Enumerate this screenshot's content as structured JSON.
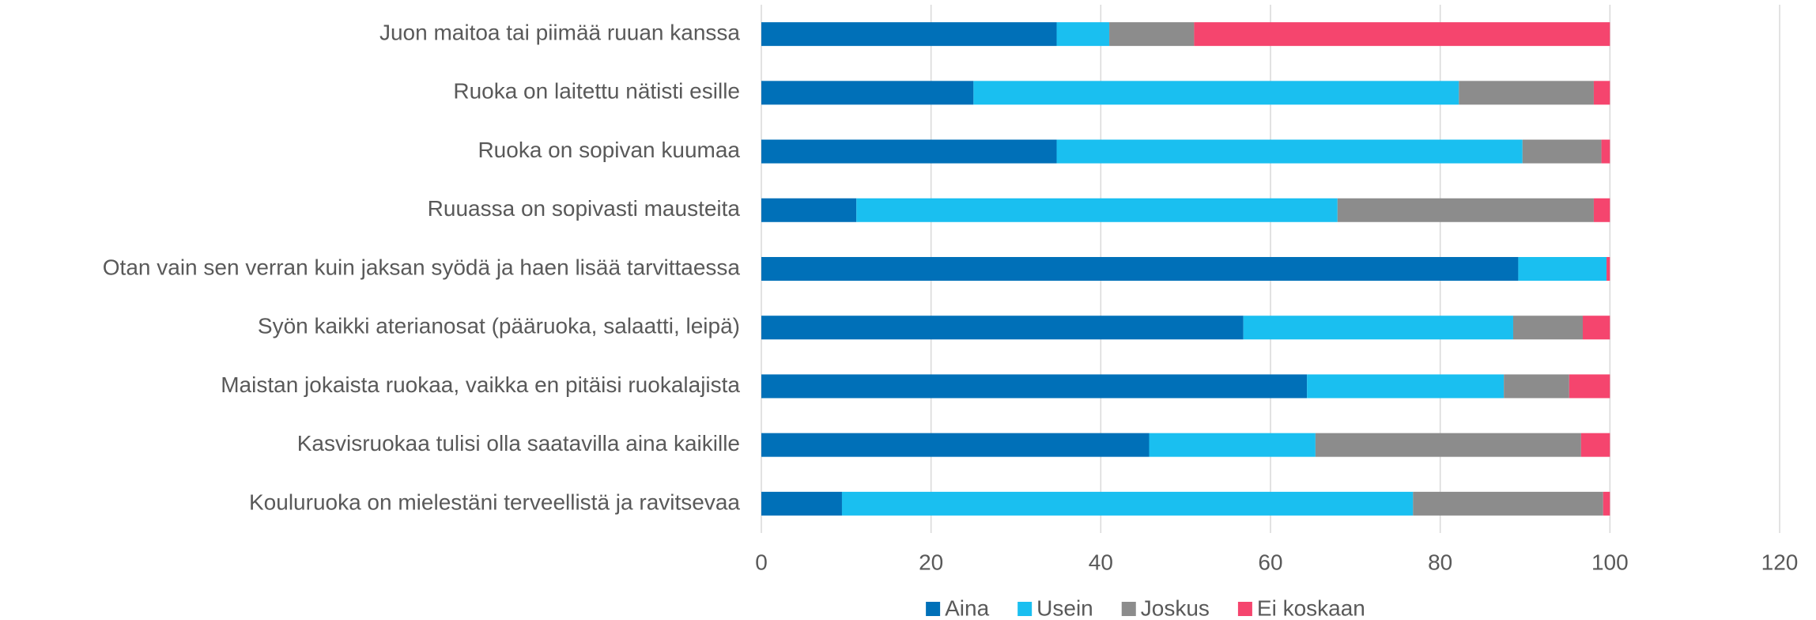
{
  "chart_data": {
    "type": "stacked_barh",
    "categories": [
      "Juon maitoa tai piimää ruuan kanssa",
      "Ruoka on laitettu nätisti esille",
      "Ruoka on sopivan kuumaa",
      "Ruuassa on sopivasti mausteita",
      "Otan vain sen verran kuin jaksan syödä ja haen lisää tarvittaessa",
      "Syön kaikki aterianosat (pääruoka, salaatti, leipä)",
      "Maistan jokaista ruokaa, vaikka en pitäisi ruokalajista",
      "Kasvisruokaa tulisi olla saatavilla aina kaikille",
      "Kouluruoka on mielestäni terveellistä ja ravitsevaa"
    ],
    "series": [
      {
        "name": "Aina",
        "color": "#0070b8",
        "values": [
          34.8,
          25,
          34.8,
          11.2,
          89.2,
          56.8,
          64.3,
          45.7,
          9.5
        ]
      },
      {
        "name": "Usein",
        "color": "#1abff0",
        "values": [
          6.2,
          57.2,
          54.9,
          56.7,
          10.4,
          31.8,
          23.2,
          19.6,
          67.3
        ]
      },
      {
        "name": "Joskus",
        "color": "#8c8c8c",
        "values": [
          10,
          15.9,
          9.3,
          30.2,
          0,
          8.2,
          7.7,
          31.3,
          22.4
        ]
      },
      {
        "name": "Ei koskaan",
        "color": "#f5456e",
        "values": [
          49,
          1.9,
          1,
          1.9,
          0.4,
          3.2,
          4.8,
          3.4,
          0.8
        ]
      }
    ],
    "xlim": [
      0,
      120
    ],
    "xticks": [
      0,
      20,
      40,
      60,
      80,
      100,
      120
    ],
    "grid": true,
    "legend": "bottom"
  }
}
